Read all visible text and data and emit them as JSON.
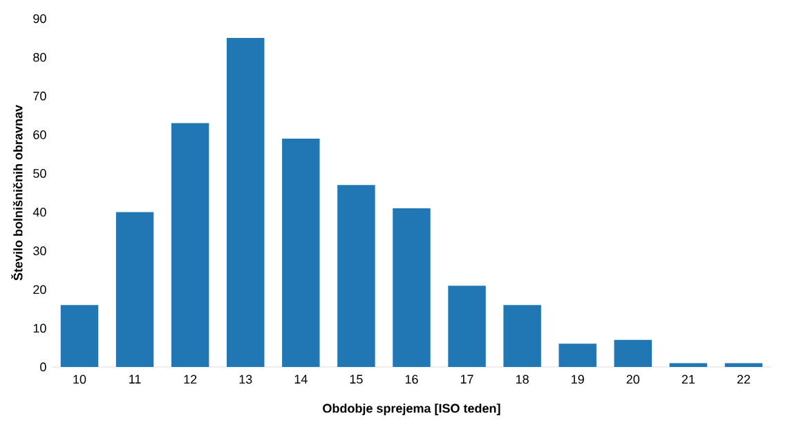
{
  "chart_data": {
    "type": "bar",
    "xlabel": "Obdobje sprejema [ISO teden]",
    "ylabel": "Število bolnišničnih obravnav",
    "categories": [
      "10",
      "11",
      "12",
      "13",
      "14",
      "15",
      "16",
      "17",
      "18",
      "19",
      "20",
      "21",
      "22"
    ],
    "values": [
      16,
      40,
      63,
      85,
      59,
      47,
      41,
      21,
      16,
      6,
      7,
      1,
      1
    ],
    "color": "#2077b4",
    "ylim": [
      0,
      90
    ],
    "yticks": [
      0,
      10,
      20,
      30,
      40,
      50,
      60,
      70,
      80,
      90
    ],
    "grid": false
  }
}
